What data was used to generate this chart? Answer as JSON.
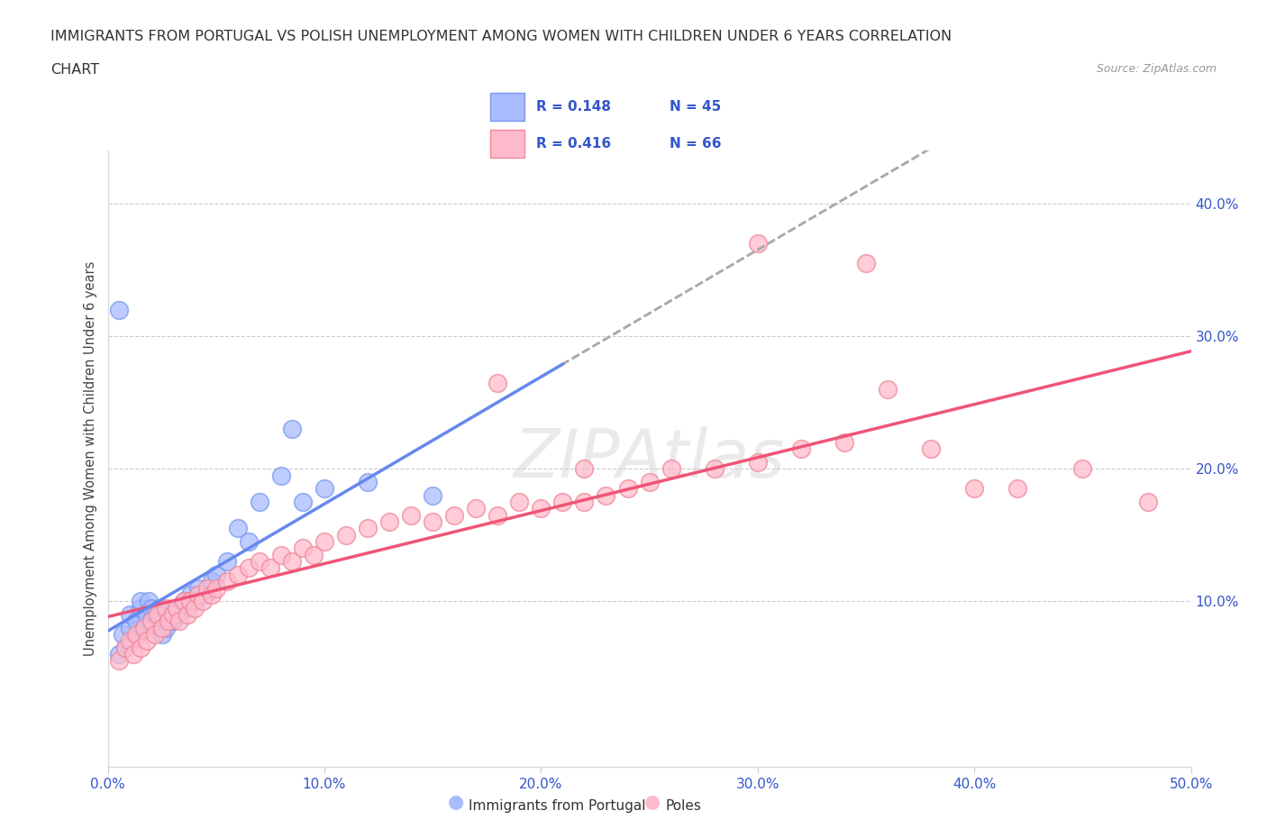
{
  "title_line1": "IMMIGRANTS FROM PORTUGAL VS POLISH UNEMPLOYMENT AMONG WOMEN WITH CHILDREN UNDER 6 YEARS CORRELATION",
  "title_line2": "CHART",
  "source_text": "Source: ZipAtlas.com",
  "ylabel": "Unemployment Among Women with Children Under 6 years",
  "xlim": [
    0.0,
    0.5
  ],
  "ylim": [
    -0.025,
    0.44
  ],
  "xticks": [
    0.0,
    0.1,
    0.2,
    0.3,
    0.4,
    0.5
  ],
  "xticklabels": [
    "0.0%",
    "10.0%",
    "20.0%",
    "30.0%",
    "40.0%",
    "50.0%"
  ],
  "yticks_right": [
    0.1,
    0.2,
    0.3,
    0.4
  ],
  "yticklabels_right": [
    "10.0%",
    "20.0%",
    "30.0%",
    "40.0%"
  ],
  "series1_color": "#aabbff",
  "series1_edge_color": "#7799ee",
  "series2_color": "#ffbbcc",
  "series2_edge_color": "#ee8899",
  "trend1_color": "#6688ee",
  "trend2_color": "#ee5577",
  "label1": "Immigrants from Portugal",
  "label2": "Poles",
  "watermark": "ZIPAtlas",
  "background_color": "#ffffff",
  "grid_color": "#cccccc",
  "title_color": "#333333",
  "legend_r_color": "#3355cc",
  "legend_n_color": "#3355cc",
  "tick_color": "#3355cc",
  "points1_x": [
    0.005,
    0.007,
    0.008,
    0.01,
    0.01,
    0.012,
    0.013,
    0.014,
    0.015,
    0.015,
    0.017,
    0.018,
    0.019,
    0.02,
    0.02,
    0.021,
    0.022,
    0.023,
    0.024,
    0.025,
    0.026,
    0.027,
    0.028,
    0.03,
    0.032,
    0.033,
    0.035,
    0.036,
    0.038,
    0.04,
    0.042,
    0.045,
    0.048,
    0.05,
    0.055,
    0.06,
    0.065,
    0.07,
    0.08,
    0.085,
    0.09,
    0.1,
    0.12,
    0.15,
    0.005
  ],
  "points1_y": [
    0.06,
    0.075,
    0.065,
    0.08,
    0.09,
    0.07,
    0.085,
    0.075,
    0.095,
    0.1,
    0.08,
    0.09,
    0.1,
    0.085,
    0.095,
    0.08,
    0.09,
    0.085,
    0.095,
    0.075,
    0.085,
    0.08,
    0.09,
    0.085,
    0.09,
    0.095,
    0.1,
    0.095,
    0.105,
    0.1,
    0.11,
    0.105,
    0.115,
    0.12,
    0.13,
    0.155,
    0.145,
    0.175,
    0.195,
    0.23,
    0.175,
    0.185,
    0.19,
    0.18,
    0.32
  ],
  "points2_x": [
    0.005,
    0.008,
    0.01,
    0.012,
    0.013,
    0.015,
    0.017,
    0.018,
    0.02,
    0.022,
    0.023,
    0.025,
    0.027,
    0.028,
    0.03,
    0.032,
    0.033,
    0.035,
    0.037,
    0.038,
    0.04,
    0.042,
    0.044,
    0.046,
    0.048,
    0.05,
    0.055,
    0.06,
    0.065,
    0.07,
    0.075,
    0.08,
    0.085,
    0.09,
    0.095,
    0.1,
    0.11,
    0.12,
    0.13,
    0.14,
    0.15,
    0.16,
    0.17,
    0.18,
    0.19,
    0.2,
    0.21,
    0.22,
    0.23,
    0.24,
    0.25,
    0.28,
    0.3,
    0.32,
    0.34,
    0.36,
    0.38,
    0.4,
    0.42,
    0.45,
    0.18,
    0.22,
    0.26,
    0.3,
    0.35,
    0.48
  ],
  "points2_y": [
    0.055,
    0.065,
    0.07,
    0.06,
    0.075,
    0.065,
    0.08,
    0.07,
    0.085,
    0.075,
    0.09,
    0.08,
    0.095,
    0.085,
    0.09,
    0.095,
    0.085,
    0.1,
    0.09,
    0.1,
    0.095,
    0.105,
    0.1,
    0.11,
    0.105,
    0.11,
    0.115,
    0.12,
    0.125,
    0.13,
    0.125,
    0.135,
    0.13,
    0.14,
    0.135,
    0.145,
    0.15,
    0.155,
    0.16,
    0.165,
    0.16,
    0.165,
    0.17,
    0.165,
    0.175,
    0.17,
    0.175,
    0.175,
    0.18,
    0.185,
    0.19,
    0.2,
    0.205,
    0.215,
    0.22,
    0.26,
    0.215,
    0.185,
    0.185,
    0.2,
    0.265,
    0.2,
    0.2,
    0.37,
    0.355,
    0.175
  ]
}
